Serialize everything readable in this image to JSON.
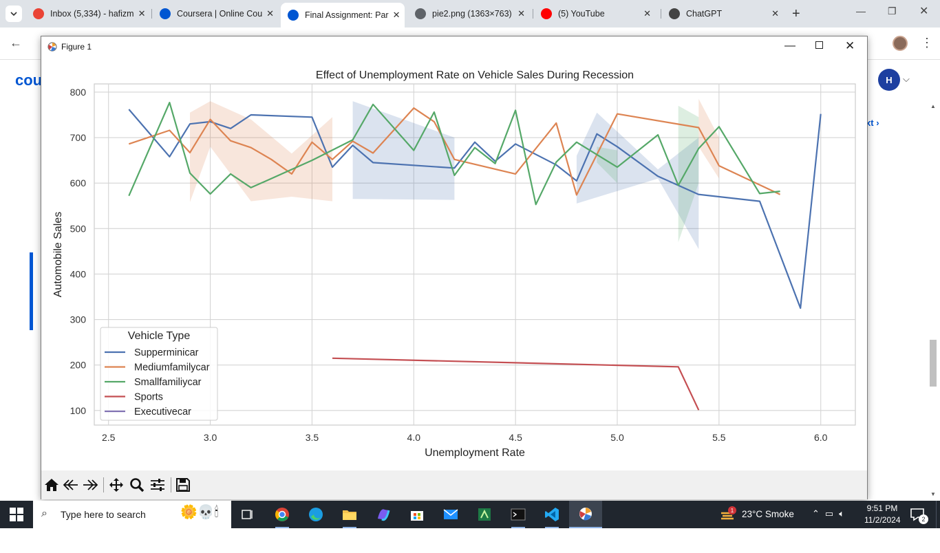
{
  "browser": {
    "tabs": [
      {
        "title": "Inbox (5,334) - hafizm",
        "icon": "gmail-icon",
        "color": "#ea4335"
      },
      {
        "title": "Coursera | Online Cou",
        "icon": "coursera-icon",
        "color": "#0056d2"
      },
      {
        "title": "Final Assignment: Par",
        "icon": "coursera-icon",
        "color": "#0056d2",
        "active": true
      },
      {
        "title": "pie2.png (1363×763)",
        "icon": "globe-icon",
        "color": "#5f6368"
      },
      {
        "title": "(5) YouTube",
        "icon": "youtube-icon",
        "color": "#ff0000"
      },
      {
        "title": "ChatGPT",
        "icon": "chatgpt-icon",
        "color": "#444444"
      }
    ]
  },
  "page": {
    "logo_fragment": "cou",
    "avatar_initial": "H",
    "next_fragment": "xt"
  },
  "figure": {
    "window_title": "Figure 1",
    "toolbar": [
      "home-icon",
      "back-icon",
      "forward-icon",
      "pan-icon",
      "zoom-icon",
      "configure-icon",
      "save-icon"
    ]
  },
  "chart_data": {
    "type": "line",
    "title": "Effect of Unemployment Rate on Vehicle Sales During Recession",
    "xlabel": "Unemployment Rate",
    "ylabel": "Automobile Sales",
    "xlim": [
      2.43,
      6.17
    ],
    "ylim": [
      68,
      818
    ],
    "xticks": [
      "2.5",
      "3.0",
      "3.5",
      "4.0",
      "4.5",
      "5.0",
      "5.5",
      "6.0"
    ],
    "yticks": [
      "100",
      "200",
      "300",
      "400",
      "500",
      "600",
      "700",
      "800"
    ],
    "grid": true,
    "legend": {
      "title": "Vehicle Type",
      "placement": "lower-left"
    },
    "series": [
      {
        "name": "Supperminicar",
        "color": "#4c72b0",
        "x": [
          2.6,
          2.8,
          2.9,
          3.0,
          3.1,
          3.2,
          3.5,
          3.6,
          3.7,
          3.8,
          4.2,
          4.3,
          4.4,
          4.5,
          4.7,
          4.8,
          4.9,
          5.0,
          5.2,
          5.4,
          5.7,
          5.9,
          6.0
        ],
        "y": [
          762,
          658,
          730,
          735,
          720,
          750,
          745,
          635,
          683,
          645,
          633,
          690,
          648,
          686,
          640,
          605,
          708,
          680,
          615,
          575,
          560,
          325,
          752
        ]
      },
      {
        "name": "Mediumfamilycar",
        "color": "#dd8452",
        "x": [
          2.6,
          2.8,
          2.9,
          3.0,
          3.1,
          3.2,
          3.3,
          3.4,
          3.5,
          3.6,
          3.7,
          3.8,
          4.0,
          4.1,
          4.2,
          4.5,
          4.7,
          4.8,
          5.0,
          5.4,
          5.5,
          5.8
        ],
        "y": [
          686,
          716,
          667,
          740,
          693,
          678,
          652,
          620,
          690,
          652,
          692,
          666,
          765,
          735,
          652,
          620,
          732,
          574,
          752,
          722,
          638,
          575
        ]
      },
      {
        "name": "Smallfamiliycar",
        "color": "#55a868",
        "x": [
          2.6,
          2.8,
          2.9,
          3.0,
          3.1,
          3.2,
          3.3,
          3.5,
          3.7,
          3.8,
          4.0,
          4.1,
          4.2,
          4.3,
          4.4,
          4.5,
          4.6,
          4.7,
          4.8,
          5.0,
          5.2,
          5.3,
          5.4,
          5.5,
          5.7,
          5.8
        ],
        "y": [
          572,
          777,
          622,
          576,
          620,
          590,
          610,
          650,
          695,
          773,
          672,
          756,
          617,
          678,
          643,
          760,
          553,
          646,
          690,
          635,
          706,
          595,
          676,
          724,
          577,
          582
        ]
      },
      {
        "name": "Sports",
        "color": "#c44e52",
        "x": [
          3.6,
          5.3,
          5.4
        ],
        "y": [
          215,
          196,
          101
        ]
      },
      {
        "name": "Executivecar",
        "color": "#8172b3",
        "x": [],
        "y": []
      }
    ],
    "bands": [
      {
        "series": "Supperminicar",
        "x": [
          3.7,
          3.7,
          4.2,
          4.2
        ],
        "y": [
          565,
          780,
          700,
          563
        ]
      },
      {
        "series": "Supperminicar",
        "x": [
          4.8,
          4.9,
          5.2,
          5.4,
          5.4,
          5.2,
          4.8
        ],
        "y": [
          660,
          755,
          630,
          700,
          455,
          610,
          555
        ]
      },
      {
        "series": "Mediumfamilycar",
        "x": [
          2.9,
          3.0,
          3.2,
          3.4,
          3.6,
          3.6,
          3.4,
          3.2,
          3.0,
          2.9
        ],
        "y": [
          755,
          780,
          740,
          665,
          745,
          560,
          570,
          560,
          680,
          558
        ]
      },
      {
        "series": "Mediumfamilycar",
        "x": [
          5.4,
          5.4,
          5.5,
          5.5
        ],
        "y": [
          680,
          785,
          700,
          610
        ]
      },
      {
        "series": "Smallfamiliycar",
        "x": [
          5.3,
          5.3,
          5.4,
          5.4
        ],
        "y": [
          470,
          770,
          745,
          600
        ]
      },
      {
        "series": "Smallfamiliycar",
        "x": [
          4.9,
          5.0,
          5.0,
          4.9
        ],
        "y": [
          680,
          672,
          600,
          645
        ]
      }
    ]
  },
  "taskbar": {
    "search_placeholder": "Type here to search",
    "apps": [
      "task-view-icon",
      "chrome-icon",
      "edge-icon",
      "file-explorer-icon",
      "copilot-icon",
      "store-icon",
      "mail-icon",
      "excel-icon",
      "terminal-icon",
      "vscode-icon",
      "matplotlib-icon"
    ],
    "weather_badge": "1",
    "weather": "23°C  Smoke",
    "time": "9:51 PM",
    "date": "11/2/2024",
    "notification_count": "2"
  }
}
